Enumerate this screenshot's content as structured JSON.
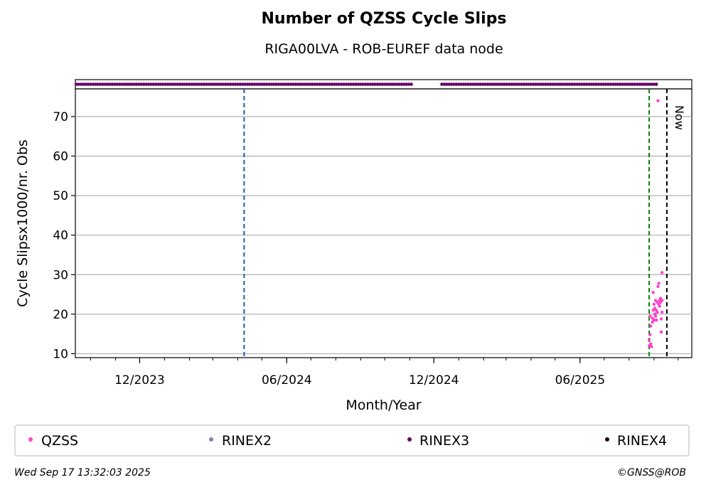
{
  "chart_data": {
    "type": "scatter",
    "title": "Number of QZSS Cycle Slips",
    "subtitle": "RIGA00LVA - ROB-EUREF data node",
    "xlabel": "Month/Year",
    "ylabel": "Cycle Slipsx1000/nr. Obs",
    "xlim": [
      "2023-09-12",
      "2025-10-18"
    ],
    "ylim": [
      9,
      77
    ],
    "yticks": [
      10,
      20,
      30,
      40,
      50,
      60,
      70
    ],
    "xticks": [
      {
        "date": "2023-12-01",
        "label": "12/2023"
      },
      {
        "date": "2024-06-01",
        "label": "06/2024"
      },
      {
        "date": "2024-12-01",
        "label": "12/2024"
      },
      {
        "date": "2025-06-01",
        "label": "06/2025"
      }
    ],
    "grid": "y",
    "vlines": [
      {
        "date": "2024-04-09",
        "color": "#1f5fa8",
        "style": "dashed"
      },
      {
        "date": "2025-08-26",
        "color": "#008000",
        "style": "dashed"
      },
      {
        "date": "2025-09-17",
        "color": "#000000",
        "style": "dashed",
        "label": "Now"
      }
    ],
    "rinex3_availability": [
      {
        "start": "2023-09-13",
        "end": "2024-11-03"
      },
      {
        "start": "2024-12-11",
        "end": "2025-09-05"
      }
    ],
    "series": [
      {
        "name": "QZSS",
        "color": "#ff44cc",
        "points": [
          {
            "x": "2025-08-26",
            "y": 12.0
          },
          {
            "x": "2025-08-26",
            "y": 13.5
          },
          {
            "x": "2025-08-27",
            "y": 14.8
          },
          {
            "x": "2025-08-27",
            "y": 19.5
          },
          {
            "x": "2025-08-28",
            "y": 12.5
          },
          {
            "x": "2025-08-28",
            "y": 17.0
          },
          {
            "x": "2025-08-29",
            "y": 11.8
          },
          {
            "x": "2025-08-30",
            "y": 18.0
          },
          {
            "x": "2025-08-30",
            "y": 19.0
          },
          {
            "x": "2025-08-31",
            "y": 25.5
          },
          {
            "x": "2025-08-31",
            "y": 21.0
          },
          {
            "x": "2025-09-01",
            "y": 22.5
          },
          {
            "x": "2025-09-01",
            "y": 18.5
          },
          {
            "x": "2025-09-02",
            "y": 20.0
          },
          {
            "x": "2025-09-02",
            "y": 21.5
          },
          {
            "x": "2025-09-03",
            "y": 23.5
          },
          {
            "x": "2025-09-03",
            "y": 19.5
          },
          {
            "x": "2025-09-04",
            "y": 18.5
          },
          {
            "x": "2025-09-04",
            "y": 21.0
          },
          {
            "x": "2025-09-05",
            "y": 23.0
          },
          {
            "x": "2025-09-05",
            "y": 20.5
          },
          {
            "x": "2025-09-06",
            "y": 27.0
          },
          {
            "x": "2025-09-06",
            "y": 74.0
          },
          {
            "x": "2025-09-07",
            "y": 27.8
          },
          {
            "x": "2025-09-07",
            "y": 22.5
          },
          {
            "x": "2025-09-08",
            "y": 23.5
          },
          {
            "x": "2025-09-08",
            "y": 22.0
          },
          {
            "x": "2025-09-09",
            "y": 24.0
          },
          {
            "x": "2025-09-09",
            "y": 23.0
          },
          {
            "x": "2025-09-10",
            "y": 18.8
          },
          {
            "x": "2025-09-10",
            "y": 15.5
          },
          {
            "x": "2025-09-11",
            "y": 23.5
          },
          {
            "x": "2025-09-11",
            "y": 20.5
          },
          {
            "x": "2025-09-11",
            "y": 30.5
          }
        ]
      },
      {
        "name": "RINEX2",
        "color": "#7f7fbf",
        "points": []
      },
      {
        "name": "RINEX3",
        "color": "#660066",
        "points": []
      },
      {
        "name": "RINEX4",
        "color": "#1a0010",
        "points": []
      }
    ]
  },
  "legend": [
    {
      "label": "QZSS",
      "color": "#ff44cc"
    },
    {
      "label": "RINEX2",
      "color": "#7f7fbf"
    },
    {
      "label": "RINEX3",
      "color": "#660066"
    },
    {
      "label": "RINEX4",
      "color": "#1a0010"
    }
  ],
  "now_label": "Now",
  "footer": {
    "timestamp": "Wed Sep 17 13:32:03 2025",
    "credit": "©GNSS@ROB"
  }
}
